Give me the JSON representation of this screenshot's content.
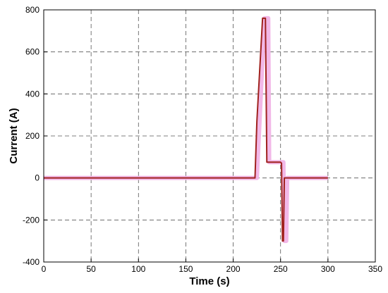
{
  "chart_data": {
    "type": "line",
    "xlabel": "Time (s)",
    "ylabel": "Current (A)",
    "xlim": [
      0,
      350
    ],
    "xticks": [
      0,
      50,
      100,
      150,
      200,
      250,
      300,
      350
    ],
    "ylim": [
      -400,
      800
    ],
    "yticks": [
      -400,
      -200,
      0,
      200,
      400,
      600,
      800
    ],
    "grid": true,
    "series": [
      {
        "color": "#f2b8e8",
        "width": 6,
        "x": [
          0,
          225,
          233,
          237,
          238,
          253,
          254,
          256,
          257,
          300
        ],
        "values": [
          0,
          0,
          760,
          760,
          75,
          75,
          -300,
          -300,
          0,
          0
        ]
      },
      {
        "color": "#a0221e",
        "width": 2,
        "x": [
          0,
          223,
          225,
          231,
          234,
          235.5,
          250,
          251,
          252,
          253,
          254,
          300
        ],
        "values": [
          0,
          0,
          270,
          760,
          760,
          75,
          75,
          70,
          -300,
          -300,
          0,
          0
        ]
      }
    ]
  }
}
